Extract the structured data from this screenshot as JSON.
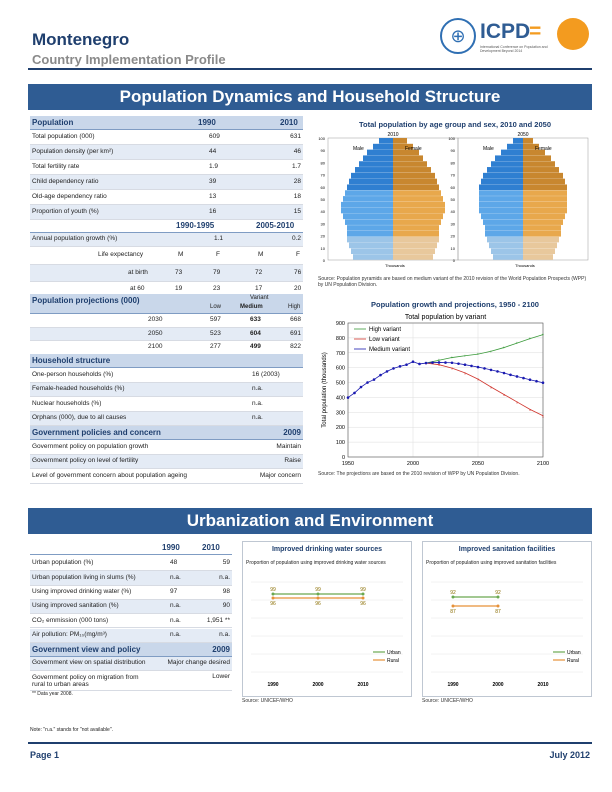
{
  "header": {
    "title": "Montenegro",
    "subtitle": "Country Implementation Profile",
    "icpd_logo": "ICPD",
    "icpd_eq": "=",
    "icpd_tagline": "International Conference on Population and Development Beyond 2014"
  },
  "section1": {
    "title": "Population Dynamics and Household Structure"
  },
  "population": {
    "head": {
      "label": "Population",
      "y1": "1990",
      "y2": "2010"
    },
    "rows": [
      {
        "label": "Total population (000)",
        "v1": "609",
        "v2": "631"
      },
      {
        "label": "Population density (per km²)",
        "v1": "44",
        "v2": "46"
      },
      {
        "label": "Total fertility rate",
        "v1": "1.9",
        "v2": "1.7"
      },
      {
        "label": "Child dependency ratio",
        "v1": "39",
        "v2": "28"
      },
      {
        "label": "Old-age dependency ratio",
        "v1": "13",
        "v2": "18"
      },
      {
        "label": "Proportion of youth (%)",
        "v1": "16",
        "v2": "15"
      }
    ],
    "period_head": {
      "p1": "1990-1995",
      "p2": "2005-2010"
    },
    "growth": {
      "label": "Annual population growth (%)",
      "v1": "1.1",
      "v2": "0.2"
    },
    "life": {
      "label": "Life expectancy",
      "m1": "M",
      "f1": "F",
      "m2": "M",
      "f2": "F"
    },
    "birth": {
      "label": "at birth",
      "m1": "73",
      "f1": "79",
      "m2": "72",
      "f2": "76"
    },
    "sixty": {
      "label": "at 60",
      "m1": "19",
      "f1": "23",
      "m2": "17",
      "f2": "20"
    }
  },
  "projections": {
    "head": "Population projections (000)",
    "variant": "Variant",
    "low": "Low",
    "medium": "Medium",
    "high": "High",
    "rows": [
      {
        "year": "2030",
        "low": "597",
        "med": "633",
        "high": "668"
      },
      {
        "year": "2050",
        "low": "523",
        "med": "604",
        "high": "691"
      },
      {
        "year": "2100",
        "low": "277",
        "med": "499",
        "high": "822"
      }
    ]
  },
  "household": {
    "head": "Household structure",
    "rows": [
      {
        "label": "One-person households (%)",
        "v": "16 (2003)"
      },
      {
        "label": "Female-headed households (%)",
        "v": "n.a."
      },
      {
        "label": "Nuclear households (%)",
        "v": "n.a."
      },
      {
        "label": "Orphans (000), due to all causes",
        "v": "n.a."
      }
    ]
  },
  "policies": {
    "head": "Government policies and concern",
    "year": "2009",
    "rows": [
      {
        "label": "Government policy on population growth",
        "v": "Maintain"
      },
      {
        "label": "Government policy on level of fertility",
        "v": "Raise"
      },
      {
        "label": "Level of government concern about population ageing",
        "v": "Major concern"
      }
    ]
  },
  "pyramid": {
    "title": "Total population by age group and sex, 2010 and 2050",
    "year1": "2010",
    "year2": "2050",
    "male": "Male",
    "female": "Female",
    "age_ticks": [
      "100",
      "90",
      "80",
      "70",
      "60",
      "50",
      "40",
      "30",
      "20",
      "10",
      "0"
    ],
    "x_label": "Thousands",
    "source": "Source: Population pyramids are based on medium variant of the 2010 revision of the World Population Prospects (WPP) by UN Population Division."
  },
  "chart_data": {
    "type": "line",
    "title": "Population growth and projections, 1950 - 2100",
    "subtitle": "Total population by variant",
    "ylabel": "Total population (thousands)",
    "ylim": [
      0,
      900
    ],
    "xlim": [
      1950,
      2100
    ],
    "yticks": [
      0,
      100,
      200,
      300,
      400,
      500,
      600,
      700,
      800,
      900
    ],
    "xticks": [
      1950,
      2000,
      2050,
      2100
    ],
    "series": [
      {
        "name": "High variant",
        "color": "#3a9a3a",
        "x": [
          2010,
          2020,
          2030,
          2040,
          2050,
          2060,
          2070,
          2080,
          2090,
          2100
        ],
        "values": [
          631,
          650,
          668,
          680,
          691,
          710,
          735,
          765,
          795,
          822
        ]
      },
      {
        "name": "Low variant",
        "color": "#d0342c",
        "x": [
          2010,
          2020,
          2030,
          2040,
          2050,
          2060,
          2070,
          2080,
          2090,
          2100
        ],
        "values": [
          631,
          620,
          597,
          565,
          523,
          470,
          420,
          370,
          320,
          277
        ]
      },
      {
        "name": "Medium variant",
        "color": "#1a1ab0",
        "x": [
          1950,
          1955,
          1960,
          1965,
          1970,
          1975,
          1980,
          1985,
          1990,
          1995,
          2000,
          2005,
          2010,
          2015,
          2020,
          2025,
          2030,
          2035,
          2040,
          2045,
          2050,
          2055,
          2060,
          2065,
          2070,
          2075,
          2080,
          2085,
          2090,
          2095,
          2100
        ],
        "values": [
          399,
          430,
          470,
          500,
          520,
          550,
          575,
          595,
          609,
          620,
          640,
          625,
          631,
          634,
          635,
          634,
          633,
          627,
          620,
          612,
          604,
          595,
          585,
          575,
          564,
          552,
          541,
          530,
          519,
          509,
          499
        ]
      }
    ],
    "source": "Source: The projections are based on the 2010 revision of WPP by UN Population Division."
  },
  "section2": {
    "title": "Urbanization and Environment"
  },
  "urban": {
    "head": {
      "y1": "1990",
      "y2": "2010"
    },
    "rows": [
      {
        "label": "Urban population (%)",
        "v1": "48",
        "v2": "59"
      },
      {
        "label": "Urban population living in slums (%)",
        "v1": "n.a.",
        "v2": "n.a."
      },
      {
        "label": "Using improved drinking water (%)",
        "v1": "97",
        "v2": "98"
      },
      {
        "label": "Using improved sanitation (%)",
        "v1": "n.a.",
        "v2": "90"
      },
      {
        "label": "CO₂ emmission (000 tons)",
        "v1": "n.a.",
        "v2": "1,951 **"
      },
      {
        "label": "Air pollution: PM₁₀(mg/m³)",
        "v1": "n.a.",
        "v2": "n.a."
      }
    ],
    "view_head": "Government view and policy",
    "view_year": "2009",
    "view_rows": [
      {
        "label": "Government view on spatial distribution",
        "v": "Major change desired"
      },
      {
        "label": "Government policy on migration from rural to urban areas",
        "v": "Lower"
      }
    ],
    "footnote": "** Data year 2008.",
    "note": "Note: \"n.a.\" stands for \"not available\"."
  },
  "water": {
    "title": "Improved drinking water sources",
    "subtitle": "Proportion of population using improved drinking water sources",
    "urban_vals": [
      "99",
      "99",
      "99"
    ],
    "rural_vals": [
      "96",
      "96",
      "96"
    ],
    "years": [
      "1990",
      "2000",
      "2010"
    ],
    "legend_urban": "Urban",
    "legend_rural": "Rural",
    "source": "Source: UNICEF/WHO"
  },
  "sanitation": {
    "title": "Improved sanitation facilities",
    "subtitle": "Proportion of population using improved sanitation facilities",
    "urban_vals": [
      "92",
      "92"
    ],
    "rural_vals": [
      "87",
      "87"
    ],
    "years": [
      "1990",
      "2000",
      "2010"
    ],
    "legend_urban": "Urban",
    "legend_rural": "Rural",
    "source": "Source: UNICEF/WHO"
  },
  "footer": {
    "page": "Page 1",
    "date": "July 2012"
  },
  "colors": {
    "navy": "#1f3f6e",
    "banner": "#2f5c93",
    "urban": "#6aa84f",
    "rural": "#e69138"
  }
}
